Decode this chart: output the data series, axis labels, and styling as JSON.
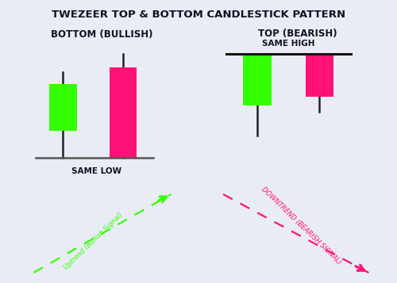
{
  "title": "TWEZEER TOP & BOTTOM CANDLESTICK PATTERN",
  "bg_color": "#eaecf5",
  "left_panel_bg": "#e8edf5",
  "right_panel_bg": "#f5f0f5",
  "green_color": "#33ff00",
  "pink_color": "#ff1177",
  "text_dark": "#111122",
  "bottom_label": "BOTTOM (BULLISH)",
  "top_label": "TOP (BEARISH)",
  "same_low": "SAME LOW",
  "same_high": "SAME HIGH",
  "uptrend_label": "Uptrend (Bullish Signal)",
  "downtrend_label": "DOWNTREND (BEARISH SIGNAL)",
  "bullish_candles": [
    {
      "open": 1.8,
      "close": 3.2,
      "high": 3.55,
      "low": 1.0,
      "color": "#33ff00"
    },
    {
      "open": 1.0,
      "close": 3.7,
      "high": 4.1,
      "low": 1.0,
      "color": "#ff1177"
    }
  ],
  "bearish_candles": [
    {
      "open": 4.5,
      "close": 2.8,
      "high": 4.5,
      "low": 1.8,
      "color": "#33ff00"
    },
    {
      "open": 4.5,
      "close": 3.1,
      "high": 4.5,
      "low": 2.6,
      "color": "#ff1177"
    }
  ]
}
